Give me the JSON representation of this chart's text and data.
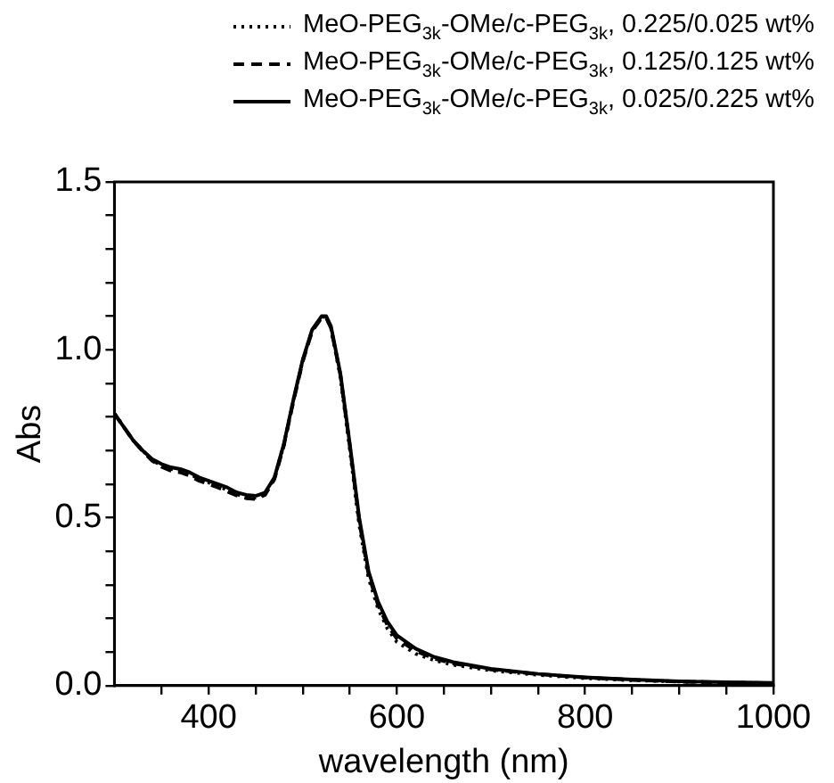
{
  "chart_data": {
    "type": "line",
    "xlabel": "wavelength (nm)",
    "ylabel": "Abs",
    "xlim": [
      300,
      1000
    ],
    "ylim": [
      0,
      1.5
    ],
    "xticks": [
      {
        "value": 350,
        "label": null
      },
      400,
      {
        "value": 450,
        "label": null
      },
      {
        "value": 500,
        "label": null
      },
      {
        "value": 550,
        "label": null
      },
      600,
      {
        "value": 650,
        "label": null
      },
      {
        "value": 700,
        "label": null
      },
      {
        "value": 750,
        "label": null
      },
      800,
      {
        "value": 850,
        "label": null
      },
      {
        "value": 900,
        "label": null
      },
      {
        "value": 950,
        "label": null
      },
      1000
    ],
    "yticks": [
      {
        "value": 0,
        "label": "0.0"
      },
      {
        "value": 0.1,
        "label": null
      },
      {
        "value": 0.2,
        "label": null
      },
      {
        "value": 0.3,
        "label": null
      },
      {
        "value": 0.4,
        "label": null
      },
      {
        "value": 0.5,
        "label": "0.5"
      },
      {
        "value": 0.6,
        "label": null
      },
      {
        "value": 0.7,
        "label": null
      },
      {
        "value": 0.8,
        "label": null
      },
      {
        "value": 0.9,
        "label": null
      },
      {
        "value": 1,
        "label": "1.0"
      },
      {
        "value": 1.1,
        "label": null
      },
      {
        "value": 1.2,
        "label": null
      },
      {
        "value": 1.3,
        "label": null
      },
      {
        "value": 1.4,
        "label": null
      },
      {
        "value": 1.5,
        "label": "1.5"
      }
    ],
    "legend": "top",
    "marker": "none",
    "x": [
      300,
      310,
      320,
      330,
      340,
      350,
      360,
      370,
      380,
      390,
      400,
      410,
      420,
      430,
      440,
      450,
      460,
      470,
      480,
      490,
      500,
      510,
      520,
      525,
      530,
      540,
      550,
      560,
      570,
      580,
      590,
      600,
      620,
      640,
      660,
      700,
      750,
      800,
      850,
      900,
      950,
      1000
    ],
    "series": [
      {
        "name": "MeO-PEG$_{3k}$-OMe/c-PEG$_{3k}$, 0.225/0.025 wt%",
        "color": "#000000",
        "line_style": "dotted",
        "values": [
          0.81,
          0.77,
          0.73,
          0.7,
          0.672,
          0.655,
          0.645,
          0.64,
          0.63,
          0.615,
          0.605,
          0.595,
          0.582,
          0.57,
          0.562,
          0.56,
          0.572,
          0.618,
          0.718,
          0.848,
          0.968,
          1.058,
          1.098,
          1.098,
          1.065,
          0.92,
          0.705,
          0.48,
          0.32,
          0.23,
          0.17,
          0.13,
          0.095,
          0.075,
          0.062,
          0.045,
          0.032,
          0.022,
          0.016,
          0.012,
          0.009,
          0.007
        ]
      },
      {
        "name": "MeO-PEG$_{3k}$-OMe/c-PEG$_{3k}$, 0.125/0.125 wt%",
        "color": "#000000",
        "line_style": "dashed",
        "values": [
          0.81,
          0.77,
          0.73,
          0.698,
          0.67,
          0.652,
          0.64,
          0.635,
          0.625,
          0.61,
          0.6,
          0.59,
          0.578,
          0.566,
          0.558,
          0.556,
          0.568,
          0.615,
          0.715,
          0.845,
          0.965,
          1.055,
          1.095,
          1.095,
          1.065,
          0.925,
          0.715,
          0.49,
          0.33,
          0.24,
          0.18,
          0.14,
          0.103,
          0.08,
          0.066,
          0.048,
          0.034,
          0.024,
          0.017,
          0.012,
          0.009,
          0.007
        ]
      },
      {
        "name": "MeO-PEG$_{3k}$-OMe/c-PEG$_{3k}$, 0.025/0.225 wt%",
        "color": "#000000",
        "line_style": "solid",
        "values": [
          0.81,
          0.77,
          0.73,
          0.7,
          0.675,
          0.66,
          0.65,
          0.645,
          0.635,
          0.62,
          0.61,
          0.6,
          0.59,
          0.575,
          0.568,
          0.565,
          0.575,
          0.62,
          0.72,
          0.85,
          0.97,
          1.06,
          1.1,
          1.1,
          1.07,
          0.93,
          0.72,
          0.5,
          0.34,
          0.25,
          0.19,
          0.15,
          0.11,
          0.085,
          0.07,
          0.05,
          0.035,
          0.025,
          0.018,
          0.013,
          0.01,
          0.008
        ]
      }
    ]
  }
}
